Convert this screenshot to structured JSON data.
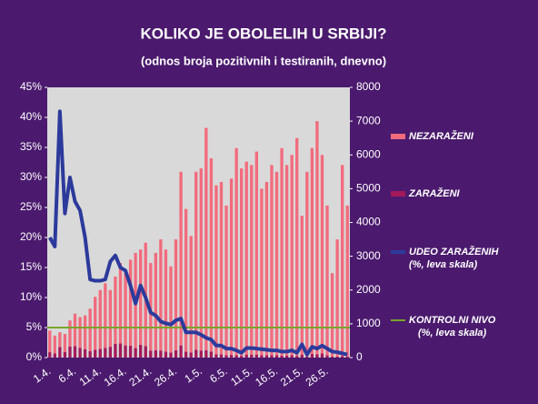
{
  "chart_data": {
    "type": "bar",
    "stacked": true,
    "title": "KOLIKO JE OBOLELIH U SRBIJI?",
    "subtitle": "(odnos broja pozitivnih i testiranih, dnevno)",
    "categories": [
      "1.4.",
      null,
      null,
      null,
      null,
      "6.4.",
      null,
      null,
      null,
      null,
      "11.4.",
      null,
      null,
      null,
      null,
      "16.4.",
      null,
      null,
      null,
      null,
      "21.4.",
      null,
      null,
      null,
      null,
      "26.4.",
      null,
      null,
      null,
      null,
      "1.5.",
      null,
      null,
      null,
      null,
      "6.5.",
      null,
      null,
      null,
      null,
      "11.5.",
      null,
      null,
      null,
      null,
      "16.5.",
      null,
      null,
      null,
      null,
      "21.5.",
      null,
      null,
      null,
      null,
      "26.5.",
      null,
      null,
      null,
      null
    ],
    "series": [
      {
        "name": "ZARAŽENI",
        "color": "#a3195b",
        "axis": "y2",
        "values": [
          160,
          120,
          310,
          170,
          330,
          340,
          290,
          250,
          190,
          230,
          260,
          290,
          320,
          410,
          420,
          360,
          350,
          280,
          380,
          340,
          210,
          220,
          210,
          180,
          150,
          220,
          360,
          180,
          150,
          230,
          210,
          220,
          180,
          100,
          100,
          70,
          80,
          70,
          50,
          90,
          90,
          90,
          70,
          70,
          70,
          70,
          60,
          60,
          70,
          50,
          90,
          30,
          110,
          100,
          120,
          70,
          30,
          30,
          40,
          30
        ]
      },
      {
        "name": "NEZARAŽENI",
        "color": "#f26b7d",
        "axis": "y2",
        "values": [
          640,
          530,
          440,
          530,
          770,
          960,
          910,
          1000,
          1260,
          1570,
          1740,
          1910,
          1680,
          1990,
          2380,
          2140,
          2550,
          2820,
          2820,
          3060,
          2590,
          2880,
          3290,
          3020,
          2550,
          3280,
          5140,
          4220,
          3450,
          5270,
          5390,
          6580,
          5720,
          5000,
          5100,
          4430,
          5220,
          6130,
          5550,
          5710,
          5610,
          6010,
          4930,
          5130,
          5630,
          5430,
          6140,
          5640,
          5930,
          6450,
          4110,
          5470,
          6090,
          6900,
          5880,
          4430,
          2470,
          3470,
          5660,
          4470
        ]
      },
      {
        "name": "UDEO ZARAŽENIH",
        "note": "(%, leva skala)",
        "color": "#2c3a9c",
        "chart": "line",
        "values": [
          20,
          18.5,
          41,
          24,
          30,
          26,
          24.5,
          20,
          13,
          12.8,
          12.8,
          13,
          16,
          17,
          15,
          14.5,
          12,
          9,
          12,
          10,
          7.5,
          7,
          6,
          5.7,
          5.5,
          6.2,
          6.5,
          4.2,
          4.2,
          4.2,
          3.8,
          3.3,
          3,
          2,
          2,
          1.5,
          1.5,
          1.2,
          0.8,
          1.6,
          1.6,
          1.5,
          1.4,
          1.3,
          1.2,
          1.2,
          1,
          1,
          1.2,
          0.8,
          2.2,
          0.5,
          1.8,
          1.5,
          2,
          1.5,
          1,
          0.9,
          0.7,
          0.5
        ]
      }
    ],
    "reference_line": {
      "name": "KONTROLNI NIVO",
      "note": "(%, leva skala)",
      "value": 5,
      "color": "#7aa52a"
    },
    "ylim": [
      0,
      45
    ],
    "yticks": [
      {
        "value": 0,
        "label": "0%"
      },
      {
        "value": 5,
        "label": "5%"
      },
      {
        "value": 10,
        "label": "10%"
      },
      {
        "value": 15,
        "label": "15%"
      },
      {
        "value": 20,
        "label": "20%"
      },
      {
        "value": 25,
        "label": "25%"
      },
      {
        "value": 30,
        "label": "30%"
      },
      {
        "value": 35,
        "label": "35%"
      },
      {
        "value": 40,
        "label": "40%"
      },
      {
        "value": 45,
        "label": "45%"
      }
    ],
    "y2lim": [
      0,
      8000
    ],
    "y2ticks": [
      0,
      1000,
      2000,
      3000,
      4000,
      5000,
      6000,
      7000,
      8000
    ],
    "grid": false,
    "legend": "right"
  }
}
